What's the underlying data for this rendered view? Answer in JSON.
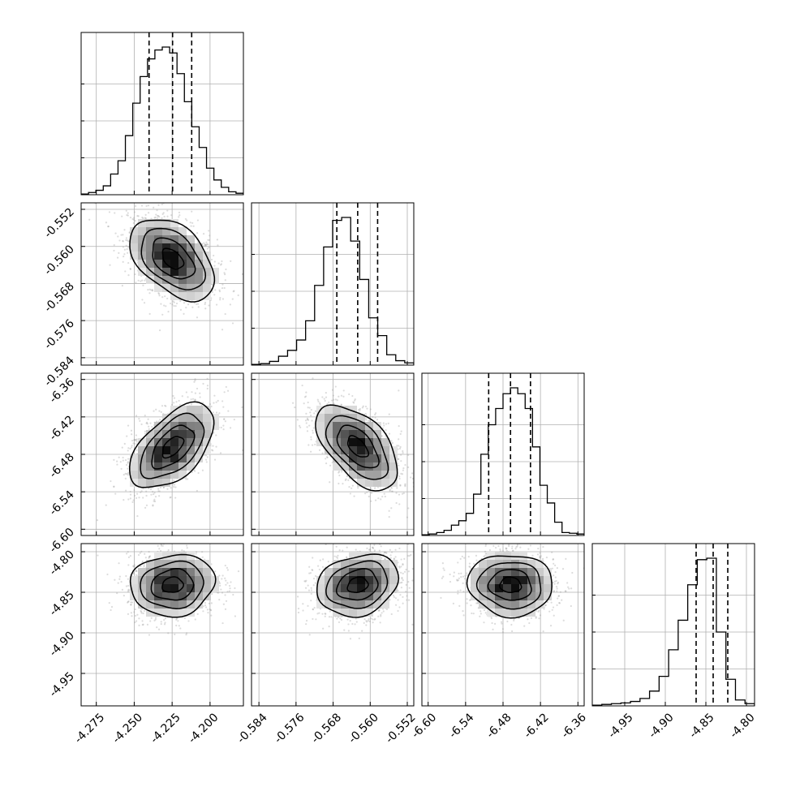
{
  "chart_data": {
    "type": "corner",
    "grid": true,
    "colors": {
      "line": "#000000",
      "grid": "#b0b0b0",
      "scatter": "#9a9a9a",
      "background": "#ffffff"
    },
    "parameters": [
      {
        "index": 0,
        "range": [
          -4.285,
          -4.178
        ],
        "ticks": [
          "-4.275",
          "-4.250",
          "-4.225",
          "-4.200"
        ],
        "tick_values": [
          -4.275,
          -4.25,
          -4.225,
          -4.2
        ],
        "quantiles": [
          -4.2402,
          -4.2247,
          -4.2121
        ],
        "mean": -4.2247,
        "sd": 0.0139,
        "hist": [
          0.5,
          1.5,
          3,
          6,
          14,
          23,
          40,
          62,
          80,
          92,
          98,
          100,
          96,
          82,
          63,
          46,
          32,
          18,
          10,
          5,
          2,
          1
        ]
      },
      {
        "index": 1,
        "range": [
          -0.5856,
          -0.5506
        ],
        "ticks": [
          "-0.584",
          "-0.576",
          "-0.568",
          "-0.560",
          "-0.552"
        ],
        "tick_values": [
          -0.584,
          -0.576,
          -0.568,
          -0.56,
          -0.552
        ],
        "quantiles": [
          -0.5672,
          -0.5627,
          -0.5584
        ],
        "mean": -0.5627,
        "sd": 0.0044,
        "hist": [
          0.5,
          1,
          2.5,
          6,
          10,
          17,
          30,
          54,
          80,
          98,
          100,
          84,
          58,
          32,
          20,
          7,
          3,
          1.5
        ]
      },
      {
        "index": 2,
        "range": [
          -6.61,
          -6.35
        ],
        "ticks": [
          "-6.60",
          "-6.54",
          "-6.48",
          "-6.42",
          "-6.36"
        ],
        "tick_values": [
          -6.6,
          -6.54,
          -6.48,
          -6.42,
          -6.36
        ],
        "quantiles": [
          -6.503,
          -6.468,
          -6.436
        ],
        "mean": -6.468,
        "sd": 0.034,
        "hist": [
          0.5,
          1,
          2,
          3.5,
          7,
          10,
          15,
          28,
          55,
          75,
          86,
          96,
          100,
          96,
          86,
          60,
          34,
          22,
          9,
          2,
          1.5,
          1
        ]
      },
      {
        "index": 3,
        "range": [
          -4.99,
          -4.79
        ],
        "ticks": [
          "-4.95",
          "-4.90",
          "-4.85",
          "-4.80"
        ],
        "tick_values": [
          -4.95,
          -4.9,
          -4.85,
          -4.8
        ],
        "quantiles": [
          -4.862,
          -4.841,
          -4.823
        ],
        "mean": -4.841,
        "sd": 0.019,
        "hist": [
          0.5,
          1,
          1.5,
          2,
          3,
          5,
          10,
          20,
          38,
          58,
          82,
          99,
          100,
          50,
          18,
          4,
          1.5
        ]
      }
    ],
    "correlations": {
      "1-0": -0.45,
      "2-0": 0.55,
      "2-1": -0.55,
      "3-0": 0.08,
      "3-1": 0.2,
      "3-2": -0.05
    }
  }
}
